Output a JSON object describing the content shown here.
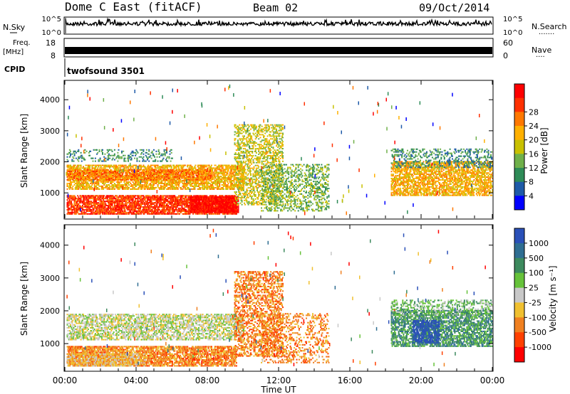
{
  "header": {
    "station": "Dome C East (fitACF)",
    "beam": "Beam 02",
    "date": "09/Oct/2014"
  },
  "top_panels": {
    "nsky_label": "N.Sky",
    "nsky_ticks": [
      "10^5",
      "10^0"
    ],
    "nsearch_label": "N.Search",
    "nsearch_ticks": [
      "10^5",
      "10^0"
    ],
    "freq_label": "Freq.",
    "freq_unit": "[MHz]",
    "freq_ticks": [
      "18",
      "8"
    ],
    "nave_label": "Nave",
    "nave_ticks": [
      "60",
      "0"
    ],
    "cpid_label": "CPID",
    "cpid_value": "twofsound 3501"
  },
  "chart_data": [
    {
      "type": "heatmap",
      "panel": "power",
      "ylabel": "Slant Range [km]",
      "yticks": [
        1000,
        2000,
        3000,
        4000
      ],
      "ylim": [
        180,
        4600
      ],
      "xlim": [
        0,
        24
      ],
      "colorbar": {
        "label": "Power [dB]",
        "ticks": [
          "4",
          "8",
          "12",
          "16",
          "20",
          "24",
          "28"
        ],
        "colors": [
          "#0000ff",
          "#1e5aa8",
          "#2e8b57",
          "#6fb04a",
          "#c8c000",
          "#ffb000",
          "#ff7800",
          "#ff3000",
          "#ff0000"
        ]
      },
      "regions": [
        {
          "t0": 0.1,
          "t1": 9.6,
          "r0": 300,
          "r1": 900,
          "level": 7,
          "density": 0.7
        },
        {
          "t0": 7.0,
          "t1": 9.7,
          "r0": 350,
          "r1": 850,
          "level": 8,
          "density": 0.85
        },
        {
          "t0": 0.1,
          "t1": 10.0,
          "r0": 1100,
          "r1": 1900,
          "level": 5,
          "density": 0.55
        },
        {
          "t0": 0.1,
          "t1": 8.2,
          "r0": 1400,
          "r1": 1750,
          "level": 6,
          "density": 0.6
        },
        {
          "t0": 9.5,
          "t1": 12.2,
          "r0": 600,
          "r1": 3200,
          "level": 4,
          "density": 0.35
        },
        {
          "t0": 11.0,
          "t1": 14.8,
          "r0": 400,
          "r1": 1900,
          "level": 3,
          "density": 0.3
        },
        {
          "t0": 18.3,
          "t1": 24.0,
          "r0": 900,
          "r1": 2000,
          "level": 5,
          "density": 0.55
        },
        {
          "t0": 18.3,
          "t1": 24.0,
          "r0": 1800,
          "r1": 2400,
          "level": 2,
          "density": 0.25
        },
        {
          "t0": 0.1,
          "t1": 6.0,
          "r0": 2000,
          "r1": 2400,
          "level": 2,
          "density": 0.2
        }
      ]
    },
    {
      "type": "heatmap",
      "panel": "velocity",
      "xlabel": "Time UT",
      "ylabel": "Slant Range [km]",
      "yticks": [
        1000,
        2000,
        3000,
        4000
      ],
      "xticks": [
        "00:00",
        "04:00",
        "08:00",
        "12:00",
        "16:00",
        "20:00",
        "00:00"
      ],
      "ylim": [
        180,
        4600
      ],
      "xlim": [
        0,
        24
      ],
      "colorbar": {
        "label": "Velocity [m s⁻¹]",
        "ticks": [
          "1000",
          "500",
          "100",
          "25",
          "-25",
          "-100",
          "-500",
          "-1000"
        ],
        "colors": [
          "#2a50b8",
          "#2f6e92",
          "#3d8a5e",
          "#66c23a",
          "#c8c8c8",
          "#f0c030",
          "#f08020",
          "#ff4000",
          "#ff0000"
        ]
      },
      "regions": [
        {
          "t0": 0.1,
          "t1": 9.6,
          "r0": 300,
          "r1": 900,
          "level": 6,
          "density": 0.65
        },
        {
          "t0": 0.1,
          "t1": 4.5,
          "r0": 300,
          "r1": 700,
          "level": 5,
          "density": 0.6
        },
        {
          "t0": 0.1,
          "t1": 10.0,
          "r0": 1100,
          "r1": 1900,
          "level": 4,
          "density": 0.5
        },
        {
          "t0": 9.5,
          "t1": 12.2,
          "r0": 600,
          "r1": 3200,
          "level": 6,
          "density": 0.4
        },
        {
          "t0": 11.0,
          "t1": 14.8,
          "r0": 400,
          "r1": 1900,
          "level": 6,
          "density": 0.25
        },
        {
          "t0": 18.3,
          "t1": 24.0,
          "r0": 900,
          "r1": 2000,
          "level": 2,
          "density": 0.55
        },
        {
          "t0": 19.5,
          "t1": 21.0,
          "r0": 1000,
          "r1": 1700,
          "level": 0,
          "density": 0.7
        },
        {
          "t0": 18.3,
          "t1": 24.0,
          "r0": 1800,
          "r1": 2300,
          "level": 3,
          "density": 0.3
        }
      ]
    }
  ]
}
